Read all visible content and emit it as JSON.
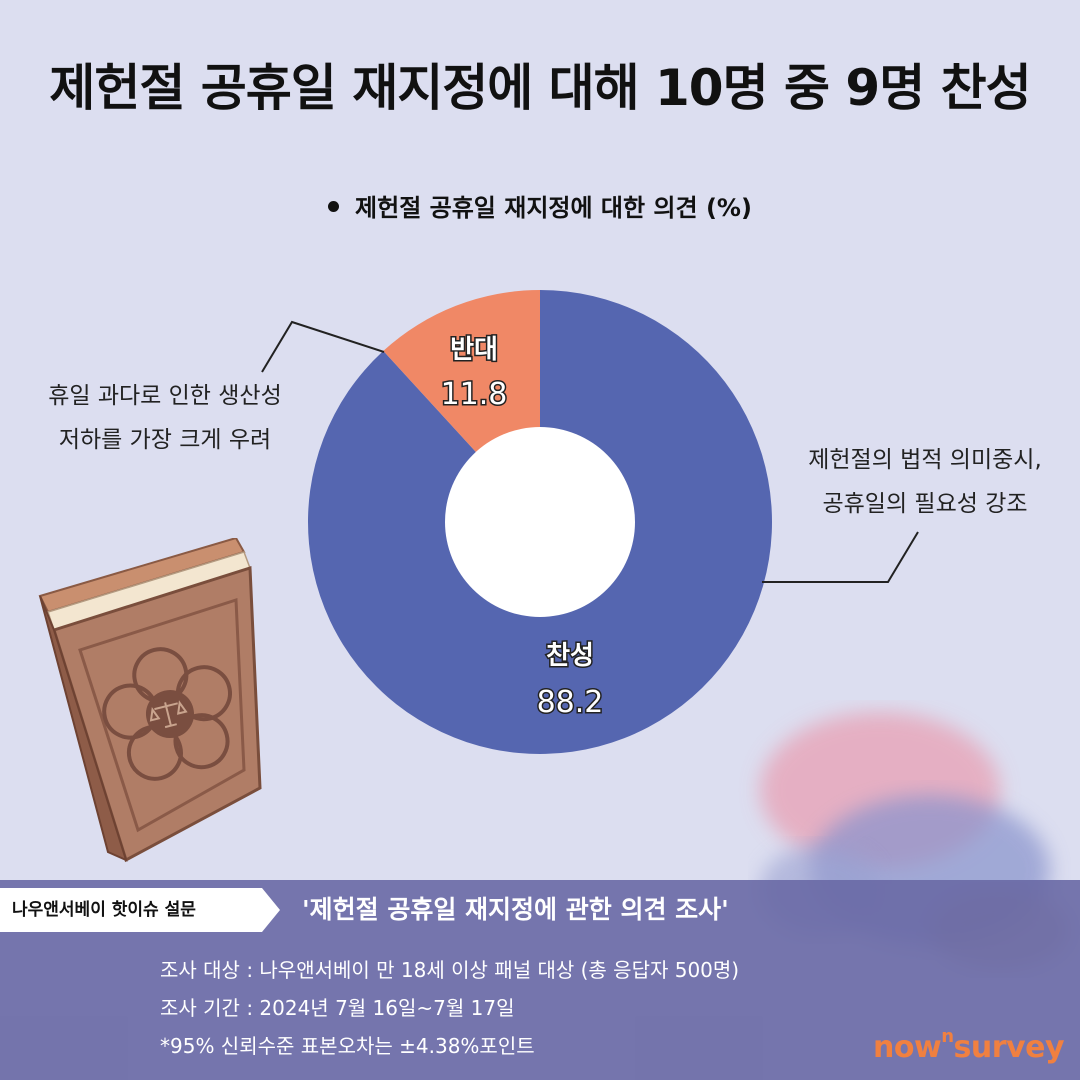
{
  "headline": "제헌절 공휴일 재지정에 대해 10명 중  9명 찬성",
  "chart_data": {
    "type": "pie",
    "title": "제헌절 공휴일 재지정에 대한 의견 (%)",
    "categories": [
      "찬성",
      "반대"
    ],
    "values": [
      88.2,
      11.8
    ],
    "value_labels": [
      "88.2",
      "11.8"
    ],
    "colors": [
      "#5566b0",
      "#f08866"
    ],
    "donut": true,
    "annotations": {
      "oppose": [
        "휴일 과다로 인한 생산성",
        "저하를 가장 크게 우려"
      ],
      "support": [
        "제헌절의 법적 의미중시,",
        "공휴일의 필요성 강조"
      ]
    }
  },
  "footer": {
    "tag": "나우앤서베이 핫이슈 설문",
    "survey_title": "'제헌절 공휴일 재지정에 관한 의견 조사'",
    "target": "조사 대상 : 나우앤서베이 만 18세 이상 패널 대상 (총 응답자 500명)",
    "period": "조사 기간 : 2024년 7월 16일~7월 17일",
    "margin": "*95% 신뢰수준 표본오차는 ±4.38%포인트",
    "brand_a": "now",
    "brand_sup": "n",
    "brand_b": "survey"
  },
  "icons": [
    "constitution-book-icon",
    "scales-of-justice-icon",
    "taegeuk-decoration-icon"
  ]
}
